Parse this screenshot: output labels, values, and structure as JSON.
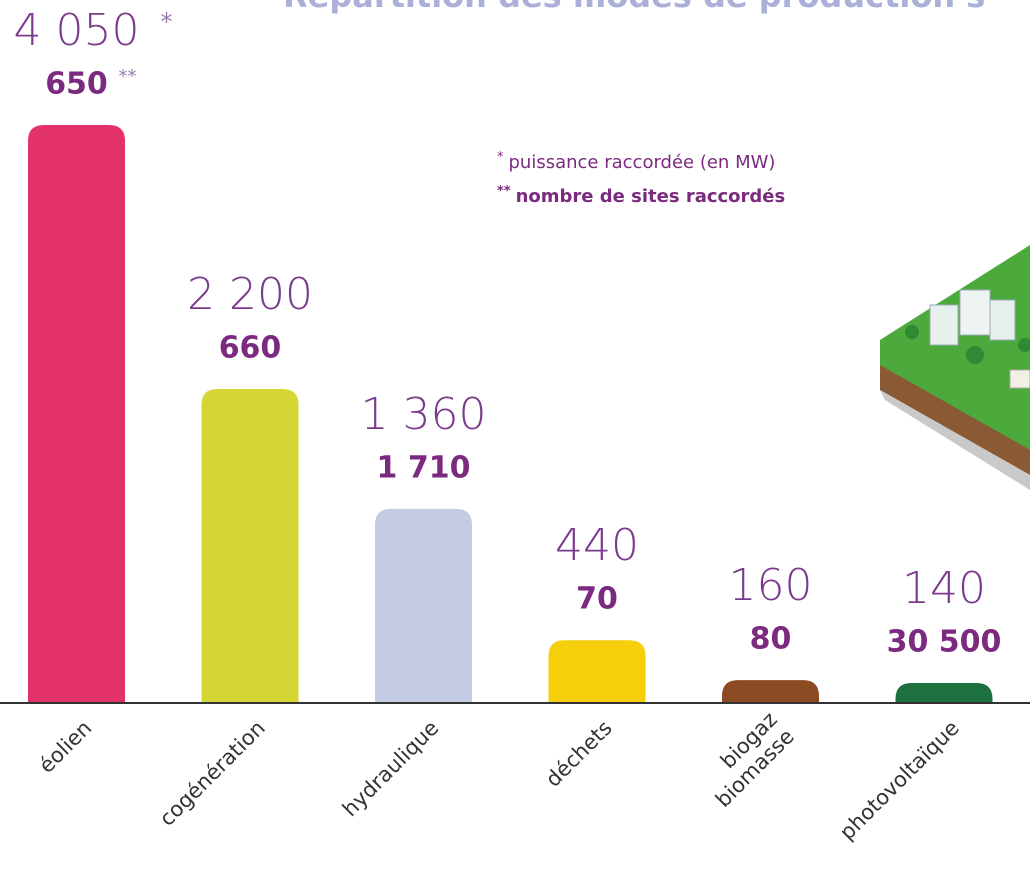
{
  "chart_data": {
    "type": "bar",
    "title": "Répartition des modes de production s",
    "categories": [
      "éolien",
      "cogénération",
      "hydraulique",
      "déchets",
      "biogaz\nbiomasse",
      "photovoltaïque"
    ],
    "colors": [
      "#e23268",
      "#d4d633",
      "#c5cbe3",
      "#f5cf0c",
      "#8b4a22",
      "#1d7040"
    ],
    "series": [
      {
        "name": "puissance raccordée (en MW)",
        "marker": "*",
        "color": "#7b3b8c",
        "values": [
          4050,
          2200,
          1360,
          440,
          160,
          140
        ],
        "value_labels": [
          "4 050",
          "2 200",
          "1 360",
          "440",
          "160",
          "140"
        ]
      },
      {
        "name": "nombre de sites raccordés",
        "marker": "**",
        "color": "#7b2a7f",
        "values": [
          650,
          660,
          1710,
          70,
          80,
          30500
        ],
        "value_labels": [
          "650",
          "660",
          "1 710",
          "70",
          "80",
          "30 500"
        ]
      }
    ]
  }
}
